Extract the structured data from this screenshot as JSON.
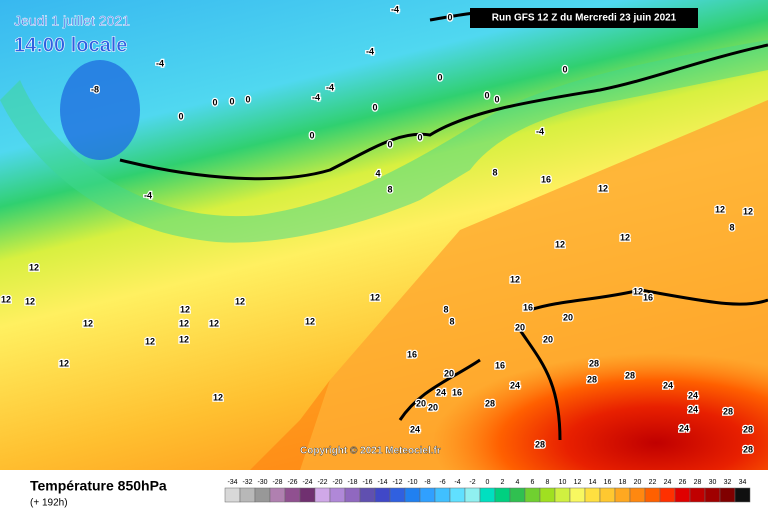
{
  "header": {
    "date": "Jeudi 1 juillet 2021",
    "time": "14:00 locale",
    "run": "Run GFS 12 Z du Mercredi 23 juin 2021"
  },
  "copyright": "Copyright © 2021 Meteociel.fr",
  "legend": {
    "title": "Température 850hPa",
    "subtitle": "(+ 192h)",
    "scale": {
      "values": [
        -34,
        -32,
        -30,
        -28,
        -26,
        -24,
        -22,
        -20,
        -18,
        -16,
        -14,
        -12,
        -10,
        -8,
        -6,
        -4,
        -2,
        0,
        2,
        4,
        6,
        8,
        10,
        12,
        14,
        16,
        18,
        20,
        22,
        24,
        26,
        28,
        30,
        32,
        34
      ],
      "colors": [
        "#d8d8d8",
        "#b8b8b8",
        "#989898",
        "#b080b0",
        "#905090",
        "#703070",
        "#d0a8e8",
        "#b088d8",
        "#9068c0",
        "#6050b0",
        "#4048c8",
        "#3060e0",
        "#2080f0",
        "#30a0ff",
        "#40c0ff",
        "#60e0ff",
        "#90f0f0",
        "#00e0c0",
        "#00d080",
        "#30c050",
        "#70d030",
        "#a0e020",
        "#d0f040",
        "#f8f860",
        "#ffe040",
        "#ffc830",
        "#ffa820",
        "#ff8810",
        "#ff6000",
        "#ff3000",
        "#e00000",
        "#c00000",
        "#a00000",
        "#800000",
        "#101010"
      ]
    }
  },
  "contour_labels": [
    -4,
    0,
    -4,
    -4,
    -4,
    -4,
    0,
    0,
    0,
    0,
    0,
    0,
    0,
    0,
    0,
    0,
    0,
    0,
    -4,
    -8,
    -4,
    4,
    8,
    8,
    16,
    12,
    12,
    12,
    12,
    12,
    8,
    12,
    12,
    12,
    12,
    12,
    12,
    12,
    12,
    12,
    12,
    12,
    12,
    12,
    12,
    8,
    8,
    16,
    16,
    12,
    12,
    20,
    20,
    20,
    16,
    16,
    20,
    20,
    20,
    24,
    16,
    28,
    28,
    28,
    24,
    28,
    24,
    24,
    24,
    24,
    28,
    24,
    28,
    28,
    28
  ]
}
